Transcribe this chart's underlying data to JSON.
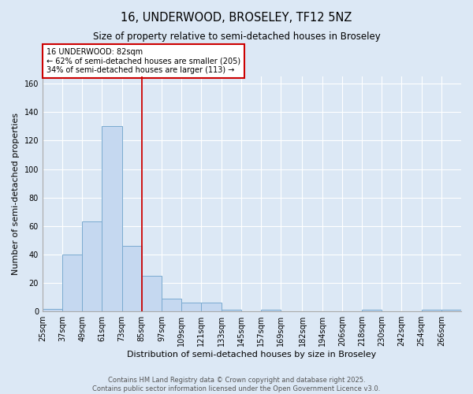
{
  "title": "16, UNDERWOOD, BROSELEY, TF12 5NZ",
  "subtitle": "Size of property relative to semi-detached houses in Broseley",
  "xlabel": "Distribution of semi-detached houses by size in Broseley",
  "ylabel": "Number of semi-detached properties",
  "footer_line1": "Contains HM Land Registry data © Crown copyright and database right 2025.",
  "footer_line2": "Contains public sector information licensed under the Open Government Licence v3.0.",
  "annotation_line1": "16 UNDERWOOD: 82sqm",
  "annotation_line2": "← 62% of semi-detached houses are smaller (205)",
  "annotation_line3": "34% of semi-detached houses are larger (113) →",
  "bin_edges": [
    25,
    37,
    49,
    61,
    73,
    85,
    97,
    109,
    121,
    133,
    145,
    157,
    169,
    182,
    194,
    206,
    218,
    230,
    242,
    254,
    266,
    278
  ],
  "categories": [
    "25sqm",
    "37sqm",
    "49sqm",
    "61sqm",
    "73sqm",
    "85sqm",
    "97sqm",
    "109sqm",
    "121sqm",
    "133sqm",
    "145sqm",
    "157sqm",
    "169sqm",
    "182sqm",
    "194sqm",
    "206sqm",
    "218sqm",
    "230sqm",
    "242sqm",
    "254sqm",
    "266sqm"
  ],
  "values": [
    2,
    40,
    63,
    130,
    46,
    25,
    9,
    6,
    6,
    1,
    0,
    1,
    0,
    0,
    0,
    0,
    1,
    0,
    0,
    1,
    1
  ],
  "bar_color": "#c5d8f0",
  "bar_edge_color": "#7aaad0",
  "vline_color": "#cc0000",
  "vline_x": 85,
  "annotation_box_edge_color": "#cc0000",
  "background_color": "#dce8f5",
  "ylim": [
    0,
    165
  ],
  "yticks": [
    0,
    20,
    40,
    60,
    80,
    100,
    120,
    140,
    160
  ],
  "grid_color": "#ffffff",
  "title_fontsize": 10.5,
  "subtitle_fontsize": 8.5,
  "axis_label_fontsize": 8,
  "tick_fontsize": 7,
  "annotation_fontsize": 7,
  "footer_fontsize": 6
}
